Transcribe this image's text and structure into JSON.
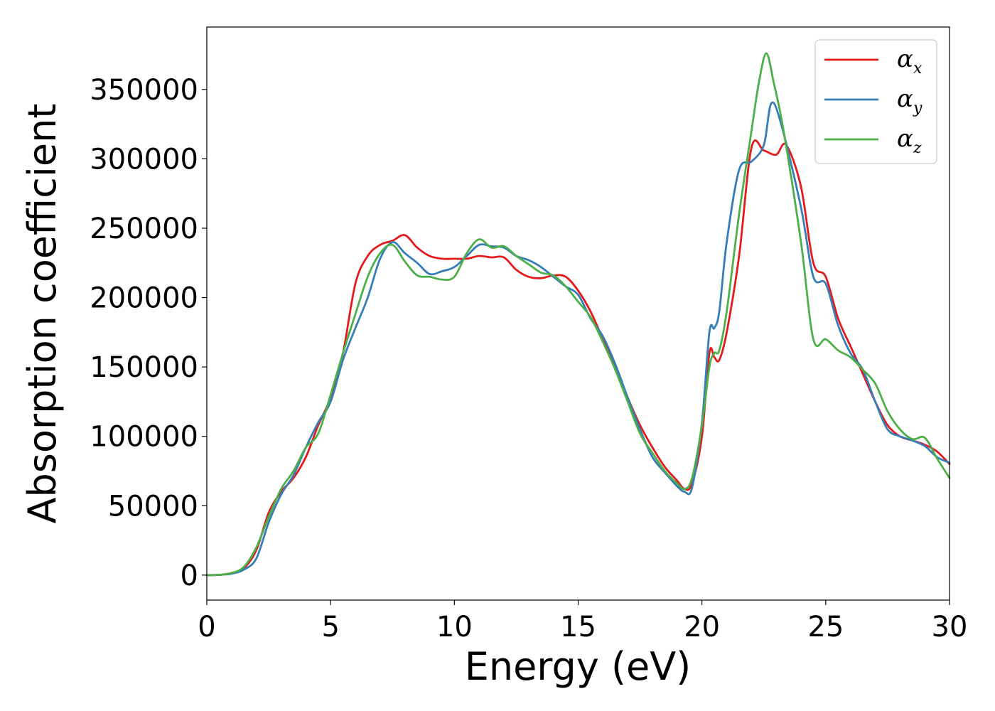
{
  "chart_data": {
    "type": "line",
    "title": "",
    "xlabel": "Energy (eV)",
    "ylabel": "Absorption coefficient",
    "xlim": [
      0,
      30
    ],
    "ylim": [
      -18000,
      395000
    ],
    "x_ticks": [
      0,
      5,
      10,
      15,
      20,
      25,
      30
    ],
    "y_ticks": [
      0,
      50000,
      100000,
      150000,
      200000,
      250000,
      300000,
      350000
    ],
    "grid": false,
    "legend_position": "top-right",
    "series": [
      {
        "name": "α",
        "name_subscript": "x",
        "color": "#e41a1c",
        "x": [
          0,
          0.5,
          1,
          1.5,
          2,
          2.5,
          3,
          3.5,
          4,
          4.5,
          5,
          5.5,
          6,
          6.5,
          7,
          7.5,
          8,
          8.5,
          9,
          9.5,
          10,
          10.5,
          11,
          11.5,
          12,
          12.5,
          13,
          13.5,
          14,
          14.5,
          15,
          15.5,
          16,
          16.5,
          17,
          17.5,
          18,
          18.5,
          19,
          19.3,
          19.6,
          20,
          20.3,
          20.5,
          20.7,
          21,
          21.5,
          22,
          22.5,
          23,
          23.4,
          24,
          24.5,
          25,
          25.5,
          26,
          26.5,
          27,
          27.5,
          28,
          28.5,
          29,
          29.5,
          30
        ],
        "y": [
          0,
          200,
          1500,
          5000,
          18000,
          45000,
          60000,
          70000,
          85000,
          108000,
          128000,
          160000,
          210000,
          230000,
          238000,
          241000,
          245000,
          236000,
          230000,
          228000,
          228000,
          228000,
          230000,
          229000,
          229000,
          220000,
          215000,
          214000,
          216000,
          215000,
          205000,
          190000,
          170000,
          150000,
          128000,
          108000,
          92000,
          78000,
          68000,
          62000,
          66000,
          100000,
          160000,
          157000,
          155000,
          175000,
          230000,
          308000,
          306000,
          303000,
          310000,
          280000,
          225000,
          215000,
          185000,
          165000,
          145000,
          125000,
          108000,
          100000,
          97000,
          94000,
          89000,
          80000
        ]
      },
      {
        "name": "α",
        "name_subscript": "y",
        "color": "#377eb8",
        "x": [
          0,
          0.5,
          1,
          1.5,
          2,
          2.5,
          3,
          3.5,
          4,
          4.5,
          5,
          5.5,
          6,
          6.5,
          7,
          7.5,
          8,
          8.5,
          9,
          9.5,
          10,
          10.5,
          11,
          11.5,
          12,
          12.5,
          13,
          13.5,
          14,
          14.5,
          15,
          15.5,
          16,
          16.5,
          17,
          17.5,
          18,
          18.5,
          19,
          19.3,
          19.6,
          20,
          20.3,
          20.5,
          20.7,
          21,
          21.5,
          22,
          22.5,
          22.8,
          23.2,
          24,
          24.5,
          25,
          25.5,
          26,
          26.5,
          27,
          27.5,
          28,
          28.5,
          29,
          29.5,
          30
        ],
        "y": [
          0,
          200,
          1000,
          4000,
          12000,
          38000,
          58000,
          72000,
          92000,
          110000,
          125000,
          155000,
          178000,
          200000,
          228000,
          240000,
          232000,
          225000,
          217000,
          219000,
          222000,
          230000,
          238000,
          237000,
          236000,
          230000,
          227000,
          222000,
          215000,
          208000,
          202000,
          185000,
          172000,
          152000,
          128000,
          105000,
          85000,
          74000,
          64000,
          60000,
          63000,
          110000,
          175000,
          178000,
          190000,
          240000,
          292000,
          298000,
          310000,
          340000,
          325000,
          265000,
          215000,
          210000,
          180000,
          160000,
          148000,
          125000,
          105000,
          100000,
          97000,
          93000,
          85000,
          81000
        ]
      },
      {
        "name": "α",
        "name_subscript": "z",
        "color": "#4daf4a",
        "x": [
          0,
          0.5,
          1,
          1.5,
          2,
          2.5,
          3,
          3.5,
          4,
          4.5,
          5,
          5.5,
          6,
          6.5,
          7,
          7.5,
          8,
          8.5,
          9,
          9.5,
          10,
          10.5,
          11,
          11.5,
          12,
          12.5,
          13,
          13.5,
          14,
          14.5,
          15,
          15.5,
          16,
          16.5,
          17,
          17.5,
          18,
          18.5,
          19,
          19.3,
          19.6,
          20,
          20.3,
          20.5,
          20.7,
          21,
          21.5,
          22,
          22.3,
          22.6,
          22.9,
          23.3,
          24,
          24.5,
          25,
          25.5,
          26,
          26.5,
          27,
          27.5,
          28,
          28.5,
          29,
          29.5,
          30
        ],
        "y": [
          0,
          200,
          1500,
          6000,
          20000,
          42000,
          62000,
          75000,
          92000,
          102000,
          130000,
          160000,
          188000,
          215000,
          232000,
          238000,
          226000,
          216000,
          215000,
          213000,
          215000,
          232000,
          242000,
          236000,
          237000,
          230000,
          224000,
          218000,
          216000,
          208000,
          197000,
          186000,
          168000,
          148000,
          125000,
          102000,
          88000,
          75000,
          66000,
          62000,
          70000,
          108000,
          150000,
          160000,
          162000,
          190000,
          260000,
          320000,
          355000,
          376000,
          355000,
          320000,
          240000,
          170000,
          170000,
          162000,
          157000,
          148000,
          138000,
          118000,
          105000,
          98000,
          99000,
          84000,
          70000
        ]
      }
    ]
  }
}
